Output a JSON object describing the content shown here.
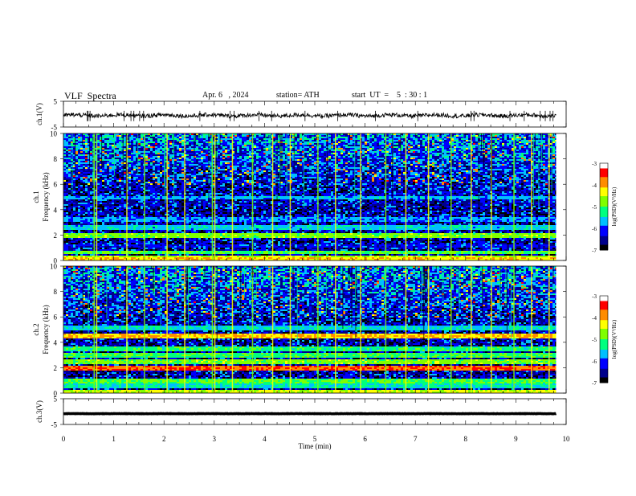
{
  "header": {
    "title": "VLF  Spectra",
    "date": "Apr. 6   , 2024",
    "station": "station= ATH",
    "start_ut": "start  UT  =    5  : 30 : 1"
  },
  "colors": {
    "colormap": [
      "#000000",
      "#00008b",
      "#0000ff",
      "#00bfff",
      "#00ff7f",
      "#7fff00",
      "#ffff00",
      "#ff8c00",
      "#ff0000",
      "#ffffff"
    ]
  },
  "chart_data": [
    {
      "type": "line",
      "name": "ch1-waveform",
      "ylabel": "ch.1(V)",
      "ylim": [
        -5,
        5
      ],
      "yticks": [
        "5",
        "-5"
      ],
      "baseline": -0.5,
      "noise_amplitude": 0.8,
      "xlim": [
        0,
        10
      ]
    },
    {
      "type": "heatmap",
      "name": "ch1-spectrogram",
      "channel_label": "ch.1",
      "ylabel": "Frequency  (kHz)",
      "ylim": [
        0,
        10
      ],
      "yticks": [
        "10",
        "8",
        "6",
        "4",
        "2",
        "0"
      ],
      "xlim": [
        0,
        9.8
      ],
      "bands_khz": [
        {
          "f": 0.1,
          "level": -4.2
        },
        {
          "f": 0.3,
          "level": -4.6
        },
        {
          "f": 0.7,
          "level": -5.0
        },
        {
          "f": 1.2,
          "level": -6.3
        },
        {
          "f": 2.0,
          "level": -4.8
        },
        {
          "f": 2.7,
          "level": -5.6
        },
        {
          "f": 3.3,
          "level": -5.8
        },
        {
          "f": 4.6,
          "level": -6.8
        },
        {
          "f": 5.0,
          "level": -5.7
        }
      ],
      "sferic_times_min": [
        0.6,
        0.65,
        1.25,
        1.6,
        2.05,
        2.4,
        2.95,
        3.0,
        3.35,
        3.75,
        4.15,
        4.5,
        5.05,
        5.4,
        5.9,
        6.4,
        6.8,
        7.25,
        7.7,
        8.1,
        8.5,
        8.95,
        9.3,
        9.65
      ],
      "colorbar": {
        "label": "log(PSD)(V²/Hz)",
        "ticks": [
          "-3",
          "-4",
          "-5",
          "-6",
          "-7"
        ],
        "range": [
          -7,
          -3
        ]
      }
    },
    {
      "type": "heatmap",
      "name": "ch2-spectrogram",
      "channel_label": "ch.2",
      "ylabel": "Frequency  (kHz)",
      "ylim": [
        0,
        10
      ],
      "yticks": [
        "10",
        "8",
        "6",
        "4",
        "2",
        "0"
      ],
      "xlim": [
        0,
        9.8
      ],
      "bands_khz": [
        {
          "f": 0.1,
          "level": -4.5
        },
        {
          "f": 0.6,
          "level": -5.4
        },
        {
          "f": 1.0,
          "level": -5.0
        },
        {
          "f": 2.0,
          "level": -3.7
        },
        {
          "f": 2.5,
          "level": -4.8
        },
        {
          "f": 3.0,
          "level": -5.1
        },
        {
          "f": 3.5,
          "level": -5.2
        },
        {
          "f": 4.6,
          "level": -4.1
        },
        {
          "f": 5.2,
          "level": -5.5
        }
      ],
      "sferic_times_min": [
        0.6,
        0.65,
        1.25,
        1.6,
        2.05,
        2.4,
        2.95,
        3.0,
        3.35,
        3.75,
        4.15,
        4.5,
        5.05,
        5.4,
        5.9,
        6.4,
        6.8,
        7.25,
        7.7,
        8.1,
        8.5,
        8.95,
        9.3,
        9.65
      ],
      "colorbar": {
        "label": "log(PSD)(V²/Hz)",
        "ticks": [
          "-3",
          "-4",
          "-5",
          "-6",
          "-7"
        ],
        "range": [
          -7,
          -3
        ]
      }
    },
    {
      "type": "line",
      "name": "ch3-waveform",
      "ylabel": "ch.3(V)",
      "ylim": [
        -5,
        5
      ],
      "yticks": [
        "5",
        "-5"
      ],
      "baseline": -0.8,
      "noise_amplitude": 0.05,
      "xlim": [
        0,
        10
      ]
    }
  ],
  "xaxis": {
    "label": "Time  (min)",
    "ticks": [
      "0",
      "1",
      "2",
      "3",
      "4",
      "5",
      "6",
      "7",
      "8",
      "9",
      "10"
    ],
    "xlim": [
      0,
      10
    ]
  }
}
